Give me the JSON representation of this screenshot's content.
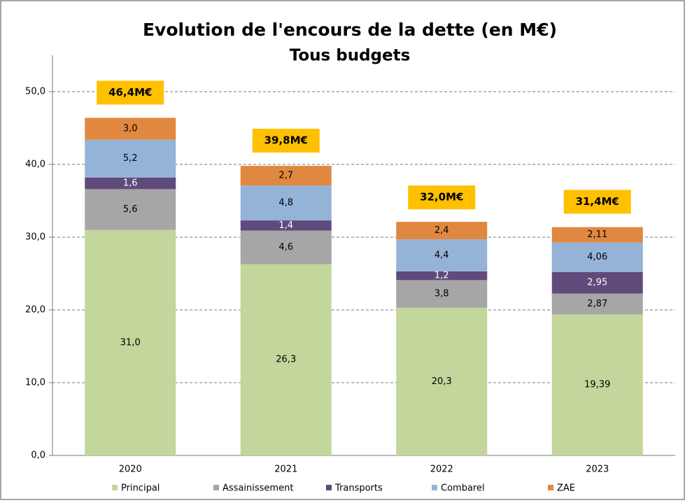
{
  "chart_data": {
    "type": "stacked_bar",
    "title": "Evolution de l'encours de la dette (en M€)",
    "subtitle": "Tous budgets",
    "categories": [
      "2020",
      "2021",
      "2022",
      "2023"
    ],
    "series": [
      {
        "name": "Principal",
        "color": "#c3d69b",
        "label_color": "#000000",
        "values": [
          31.0,
          26.3,
          20.3,
          19.39
        ],
        "value_labels": [
          "31,0",
          "26,3",
          "20,3",
          "19,39"
        ]
      },
      {
        "name": "Assainissement",
        "color": "#a6a6a6",
        "label_color": "#000000",
        "values": [
          5.6,
          4.6,
          3.8,
          2.87
        ],
        "value_labels": [
          "5,6",
          "4,6",
          "3,8",
          "2,87"
        ]
      },
      {
        "name": "Transports",
        "color": "#604a7b",
        "label_color": "#ffffff",
        "values": [
          1.6,
          1.4,
          1.2,
          2.95
        ],
        "value_labels": [
          "1,6",
          "1,4",
          "1,2",
          "2,95"
        ]
      },
      {
        "name": "Combarel",
        "color": "#95b3d7",
        "label_color": "#000000",
        "values": [
          5.2,
          4.8,
          4.4,
          4.06
        ],
        "value_labels": [
          "5,2",
          "4,8",
          "4,4",
          "4,06"
        ]
      },
      {
        "name": "ZAE",
        "color": "#e0883f",
        "label_color": "#000000",
        "values": [
          3.0,
          2.7,
          2.4,
          2.11
        ],
        "value_labels": [
          "3,0",
          "2,7",
          "2,4",
          "2,11"
        ]
      }
    ],
    "totals": {
      "color": "#ffc000",
      "values": [
        46.4,
        39.8,
        32.0,
        31.4
      ],
      "value_labels": [
        "46,4M€",
        "39,8M€",
        "32,0M€",
        "31,4M€"
      ]
    },
    "ylim": [
      0,
      55
    ],
    "yticks": [
      {
        "value": 0,
        "label": "0,0"
      },
      {
        "value": 10,
        "label": "10,0"
      },
      {
        "value": 20,
        "label": "20,0"
      },
      {
        "value": 30,
        "label": "30,0"
      },
      {
        "value": 40,
        "label": "40,0"
      },
      {
        "value": 50,
        "label": "50,0"
      }
    ],
    "grid": true,
    "legend": "bottom"
  }
}
